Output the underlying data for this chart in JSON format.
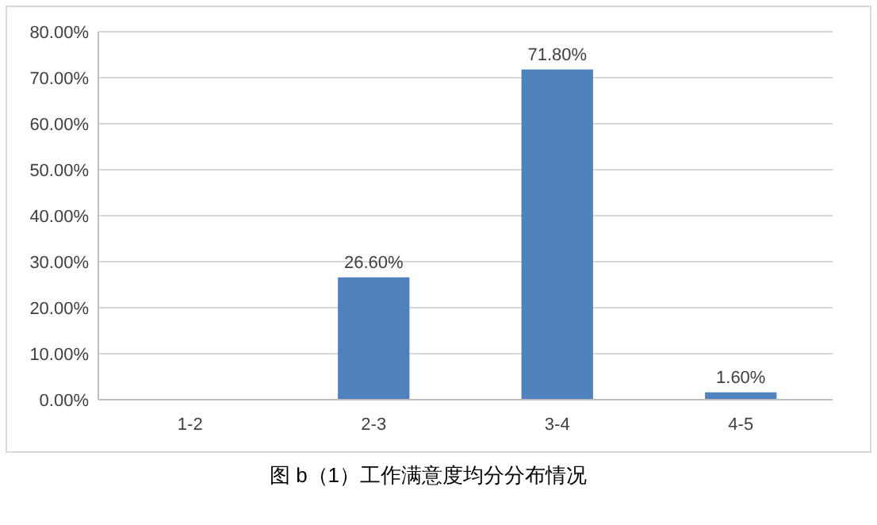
{
  "chart_data": {
    "type": "bar",
    "title": "图 b（1）工作满意度均分分布情况",
    "categories": [
      "1-2",
      "2-3",
      "3-4",
      "4-5"
    ],
    "values": [
      0,
      26.6,
      71.8,
      1.6
    ],
    "value_labels": [
      null,
      "26.60%",
      "71.80%",
      "1.60%"
    ],
    "color": "#4f81bd",
    "ylim": [
      0,
      80
    ],
    "yticks": [
      {
        "value": 0,
        "label": "0.00%"
      },
      {
        "value": 10,
        "label": "10.00%"
      },
      {
        "value": 20,
        "label": "20.00%"
      },
      {
        "value": 30,
        "label": "30.00%"
      },
      {
        "value": 40,
        "label": "40.00%"
      },
      {
        "value": 50,
        "label": "50.00%"
      },
      {
        "value": 60,
        "label": "60.00%"
      },
      {
        "value": 70,
        "label": "70.00%"
      },
      {
        "value": 80,
        "label": "80.00%"
      }
    ],
    "grid": "y"
  }
}
